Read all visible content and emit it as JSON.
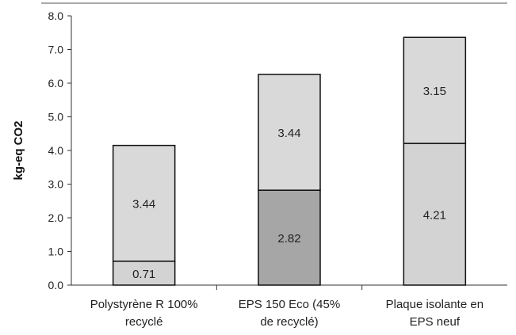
{
  "chart_data": {
    "type": "bar",
    "stacked": true,
    "categories": [
      [
        "Polystyrène R 100%",
        "recyclé"
      ],
      [
        "EPS 150 Eco (45%",
        "de recyclé)"
      ],
      [
        "Plaque isolante en",
        "EPS neuf"
      ]
    ],
    "series": [
      {
        "values": [
          0.71,
          2.82,
          4.21
        ],
        "labels": [
          "0.71",
          "2.82",
          "4.21"
        ],
        "colors": [
          "#d3d3d3",
          "#a6a6a6",
          "#d3d3d3"
        ]
      },
      {
        "values": [
          3.44,
          3.44,
          3.15
        ],
        "labels": [
          "3.44",
          "3.44",
          "3.15"
        ],
        "colors": [
          "#d9d9d9",
          "#d9d9d9",
          "#d9d9d9"
        ]
      }
    ],
    "ylabel": "kg-eq CO2",
    "ylim": [
      0,
      8
    ],
    "yticks": [
      "0.0",
      "1.0",
      "2.0",
      "3.0",
      "4.0",
      "5.0",
      "6.0",
      "7.0",
      "8.0"
    ],
    "grid": false,
    "legend": "none"
  }
}
